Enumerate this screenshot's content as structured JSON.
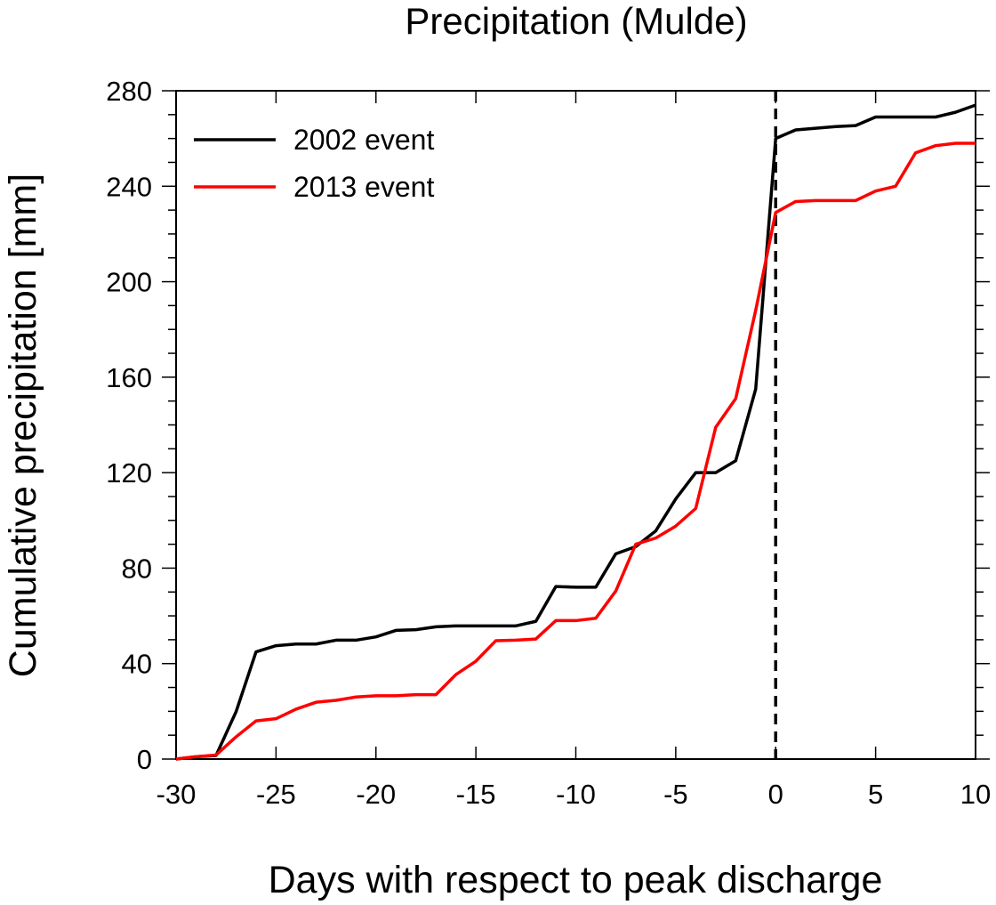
{
  "chart_data": {
    "type": "line",
    "title": "Precipitation (Mulde)",
    "xlabel": "Days with respect to peak discharge",
    "ylabel": "Cumulative precipitation [mm]",
    "xlim": [
      -30,
      10
    ],
    "ylim": [
      0,
      280
    ],
    "xticks": [
      -30,
      -25,
      -20,
      -15,
      -10,
      -5,
      0,
      5,
      10
    ],
    "yticks": [
      0,
      40,
      80,
      120,
      160,
      200,
      240,
      280
    ],
    "y_minor_step": 10,
    "grid": false,
    "legend_position": "top-left",
    "reference_line": {
      "x": 0,
      "style": "dashed",
      "color": "#000000"
    },
    "x": [
      -30,
      -29,
      -28,
      -27,
      -26,
      -25,
      -24,
      -23,
      -22,
      -21,
      -20,
      -19,
      -18,
      -17,
      -16,
      -15,
      -14,
      -13,
      -12,
      -11,
      -10,
      -9,
      -8,
      -7,
      -6,
      -5,
      -4,
      -3,
      -2,
      -1,
      0,
      1,
      2,
      3,
      4,
      5,
      6,
      7,
      8,
      9,
      10
    ],
    "series": [
      {
        "name": "2002 event",
        "color": "#000000",
        "values": [
          0,
          1,
          1.5,
          19.8,
          44.9,
          47.5,
          48.2,
          48.2,
          49.8,
          49.8,
          51.2,
          53.9,
          54.2,
          55.4,
          55.8,
          55.8,
          55.8,
          55.8,
          57.7,
          72.3,
          72,
          72,
          86,
          89,
          95.6,
          109,
          120,
          120,
          125,
          155,
          260,
          263.6,
          264.3,
          265,
          265.4,
          269,
          269,
          269,
          269,
          271,
          274
        ]
      },
      {
        "name": "2013 event",
        "color": "#ff0000",
        "values": [
          0,
          1,
          1.7,
          9.3,
          16,
          16.9,
          20.9,
          23.8,
          24.6,
          26,
          26.5,
          26.5,
          27,
          27,
          35.4,
          41,
          49.6,
          49.8,
          50.3,
          58,
          58,
          59,
          70.4,
          90,
          92.6,
          97.6,
          105,
          139,
          151,
          188,
          229,
          233.6,
          234,
          234,
          234,
          238,
          240,
          254,
          257,
          258,
          258
        ]
      }
    ]
  }
}
